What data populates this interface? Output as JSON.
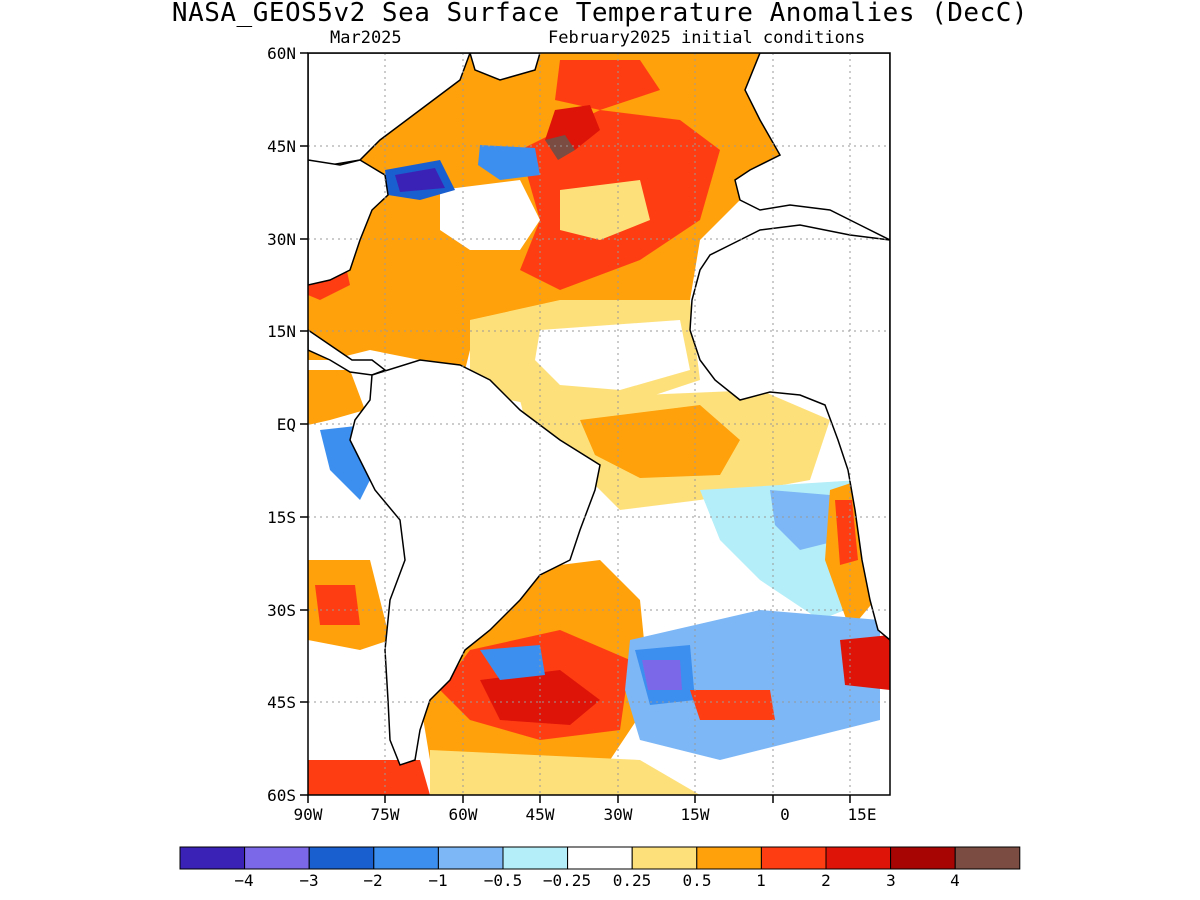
{
  "header": {
    "title": "NASA_GEOS5v2 Sea Surface Temperature Anomalies (DecC)",
    "left_subtitle": "Mar2025",
    "right_subtitle": "February2025 initial conditions"
  },
  "axes": {
    "lat_labels": [
      "60N",
      "45N",
      "30N",
      "15N",
      "EQ",
      "15S",
      "30S",
      "45S",
      "60S"
    ],
    "lon_labels": [
      "90W",
      "75W",
      "60W",
      "45W",
      "30W",
      "15W",
      "0",
      "15E"
    ]
  },
  "colorbar": {
    "colors": [
      "#3b22b6",
      "#7a68e8",
      "#1a5fd0",
      "#3c8fef",
      "#7db7f5",
      "#b4eef8",
      "#ffffff",
      "#fee07b",
      "#ffa10a",
      "#ff3d12",
      "#de1409",
      "#a70404",
      "#7b4c42"
    ],
    "labels": [
      "−4",
      "−3",
      "−2",
      "−1",
      "−0.5",
      "−0.25",
      "0.25",
      "0.5",
      "1",
      "2",
      "3",
      "4"
    ]
  }
}
